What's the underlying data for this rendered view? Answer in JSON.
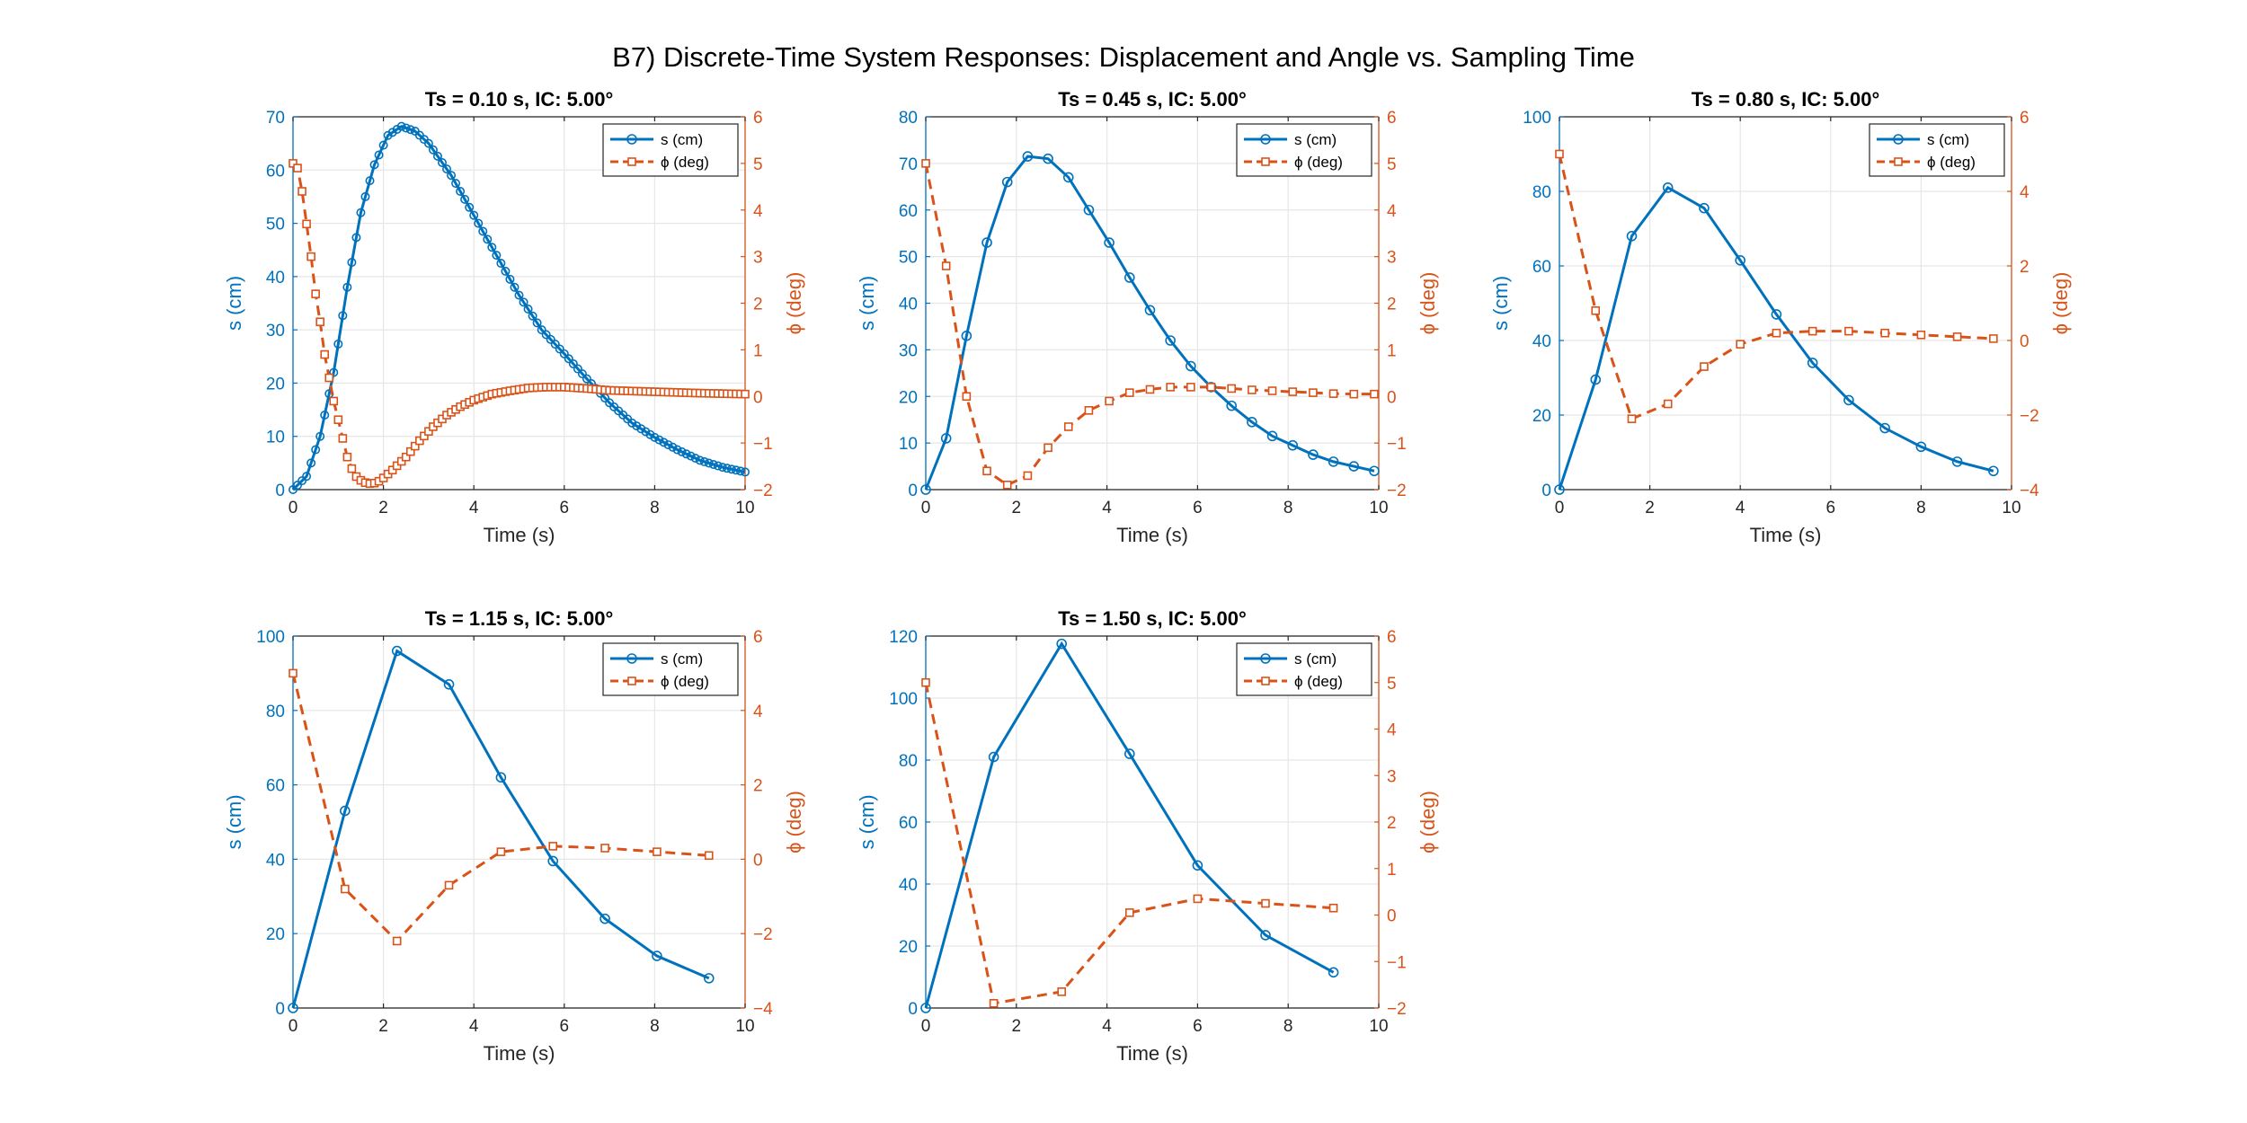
{
  "figure_title": "B7) Discrete-Time System Responses: Displacement and Angle vs. Sampling Time",
  "colors": {
    "s": "#0072BD",
    "phi": "#D95319",
    "grid": "#e6e6e6",
    "axis": "#262626"
  },
  "chart_data": [
    {
      "type": "line",
      "title": "Ts = 0.10 s, IC: 5.00°",
      "xlabel": "Time (s)",
      "ylabel_left": "s (cm)",
      "ylabel_right": "ϕ (deg)",
      "xlim": [
        0,
        10
      ],
      "ylim_left": [
        0,
        70
      ],
      "ylim_right": [
        -2,
        6
      ],
      "xticks": [
        0,
        2,
        4,
        6,
        8,
        10
      ],
      "yticks_left": [
        0,
        10,
        20,
        30,
        40,
        50,
        60,
        70
      ],
      "yticks_right": [
        -2,
        -1,
        0,
        1,
        2,
        3,
        4,
        5,
        6
      ],
      "legend": [
        "s (cm)",
        "ϕ (deg)"
      ],
      "legend_position": "top-right",
      "grid": true,
      "dense": true,
      "Ts": 0.1,
      "tmax": 10.0,
      "s_key": [
        [
          0,
          0
        ],
        [
          0.3,
          2.5
        ],
        [
          0.6,
          10
        ],
        [
          0.9,
          22
        ],
        [
          1.2,
          38
        ],
        [
          1.5,
          52
        ],
        [
          1.8,
          61
        ],
        [
          2.1,
          66.5
        ],
        [
          2.4,
          68.2
        ],
        [
          2.7,
          67.3
        ],
        [
          3.0,
          65
        ],
        [
          3.5,
          59
        ],
        [
          4.0,
          51.5
        ],
        [
          4.5,
          44
        ],
        [
          5.0,
          36.5
        ],
        [
          5.5,
          30
        ],
        [
          6.0,
          25.5
        ],
        [
          6.5,
          20.8
        ],
        [
          7.0,
          16.3
        ],
        [
          7.5,
          12.5
        ],
        [
          8.0,
          9.8
        ],
        [
          8.5,
          7.5
        ],
        [
          9.0,
          5.5
        ],
        [
          9.5,
          4.2
        ],
        [
          10.0,
          3.3
        ]
      ],
      "phi_key": [
        [
          0,
          5.0
        ],
        [
          0.1,
          4.9
        ],
        [
          0.2,
          4.4
        ],
        [
          0.3,
          3.7
        ],
        [
          0.4,
          3.0
        ],
        [
          0.5,
          2.2
        ],
        [
          0.6,
          1.6
        ],
        [
          0.7,
          0.9
        ],
        [
          0.8,
          0.4
        ],
        [
          0.9,
          -0.1
        ],
        [
          1.0,
          -0.5
        ],
        [
          1.1,
          -0.9
        ],
        [
          1.2,
          -1.3
        ],
        [
          1.3,
          -1.55
        ],
        [
          1.4,
          -1.72
        ],
        [
          1.5,
          -1.8
        ],
        [
          1.6,
          -1.85
        ],
        [
          1.7,
          -1.87
        ],
        [
          1.8,
          -1.86
        ],
        [
          1.9,
          -1.82
        ],
        [
          2.0,
          -1.75
        ],
        [
          2.2,
          -1.58
        ],
        [
          2.5,
          -1.3
        ],
        [
          2.8,
          -0.95
        ],
        [
          3.1,
          -0.65
        ],
        [
          3.4,
          -0.4
        ],
        [
          3.7,
          -0.22
        ],
        [
          4.0,
          -0.08
        ],
        [
          4.4,
          0.05
        ],
        [
          4.8,
          0.12
        ],
        [
          5.2,
          0.18
        ],
        [
          5.6,
          0.2
        ],
        [
          6.0,
          0.2
        ],
        [
          6.5,
          0.17
        ],
        [
          7.0,
          0.13
        ],
        [
          8.0,
          0.1
        ],
        [
          9.0,
          0.07
        ],
        [
          10.0,
          0.05
        ]
      ]
    },
    {
      "type": "line",
      "title": "Ts = 0.45 s, IC: 5.00°",
      "xlabel": "Time (s)",
      "ylabel_left": "s (cm)",
      "ylabel_right": "ϕ (deg)",
      "xlim": [
        0,
        10
      ],
      "ylim_left": [
        0,
        80
      ],
      "ylim_right": [
        -2,
        6
      ],
      "xticks": [
        0,
        2,
        4,
        6,
        8,
        10
      ],
      "yticks_left": [
        0,
        10,
        20,
        30,
        40,
        50,
        60,
        70,
        80
      ],
      "yticks_right": [
        -2,
        -1,
        0,
        1,
        2,
        3,
        4,
        5,
        6
      ],
      "legend": [
        "s (cm)",
        "ϕ (deg)"
      ],
      "legend_position": "top-right",
      "grid": true,
      "x": [
        0,
        0.45,
        0.9,
        1.35,
        1.8,
        2.25,
        2.7,
        3.15,
        3.6,
        4.05,
        4.5,
        4.95,
        5.4,
        5.85,
        6.3,
        6.75,
        7.2,
        7.65,
        8.1,
        8.55,
        9.0,
        9.45,
        9.9
      ],
      "s": [
        0,
        11,
        33,
        53,
        66,
        71.5,
        71,
        67,
        60,
        53,
        45.5,
        38.5,
        32,
        26.5,
        22,
        18,
        14.5,
        11.5,
        9.5,
        7.5,
        6.0,
        5.0,
        4.0
      ],
      "phi": [
        5.0,
        2.8,
        0.0,
        -1.6,
        -1.9,
        -1.7,
        -1.1,
        -0.65,
        -0.3,
        -0.1,
        0.08,
        0.15,
        0.2,
        0.2,
        0.2,
        0.17,
        0.14,
        0.12,
        0.1,
        0.08,
        0.06,
        0.05,
        0.05
      ]
    },
    {
      "type": "line",
      "title": "Ts = 0.80 s, IC: 5.00°",
      "xlabel": "Time (s)",
      "ylabel_left": "s (cm)",
      "ylabel_right": "ϕ (deg)",
      "xlim": [
        0,
        10
      ],
      "ylim_left": [
        0,
        100
      ],
      "ylim_right": [
        -4,
        6
      ],
      "xticks": [
        0,
        2,
        4,
        6,
        8,
        10
      ],
      "yticks_left": [
        0,
        20,
        40,
        60,
        80,
        100
      ],
      "yticks_right": [
        -4,
        -2,
        0,
        2,
        4,
        6
      ],
      "legend": [
        "s (cm)",
        "ϕ (deg)"
      ],
      "legend_position": "top-right",
      "grid": true,
      "x": [
        0,
        0.8,
        1.6,
        2.4,
        3.2,
        4.0,
        4.8,
        5.6,
        6.4,
        7.2,
        8.0,
        8.8,
        9.6
      ],
      "s": [
        0,
        29.5,
        68,
        81,
        75.5,
        61.5,
        47,
        34,
        24,
        16.5,
        11.5,
        7.5,
        5.0
      ],
      "phi": [
        5.0,
        0.8,
        -2.1,
        -1.7,
        -0.7,
        -0.1,
        0.2,
        0.25,
        0.25,
        0.2,
        0.15,
        0.1,
        0.05
      ]
    },
    {
      "type": "line",
      "title": "Ts = 1.15 s, IC: 5.00°",
      "xlabel": "Time (s)",
      "ylabel_left": "s (cm)",
      "ylabel_right": "ϕ (deg)",
      "xlim": [
        0,
        10
      ],
      "ylim_left": [
        0,
        100
      ],
      "ylim_right": [
        -4,
        6
      ],
      "xticks": [
        0,
        2,
        4,
        6,
        8,
        10
      ],
      "yticks_left": [
        0,
        20,
        40,
        60,
        80,
        100
      ],
      "yticks_right": [
        -4,
        -2,
        0,
        2,
        4,
        6
      ],
      "legend": [
        "s (cm)",
        "ϕ (deg)"
      ],
      "legend_position": "top-right",
      "grid": true,
      "x": [
        0,
        1.15,
        2.3,
        3.45,
        4.6,
        5.75,
        6.9,
        8.05,
        9.2
      ],
      "s": [
        0,
        53,
        96,
        87,
        62,
        39.5,
        24,
        14,
        8
      ],
      "phi": [
        5.0,
        -0.8,
        -2.2,
        -0.7,
        0.2,
        0.35,
        0.3,
        0.2,
        0.1
      ]
    },
    {
      "type": "line",
      "title": "Ts = 1.50 s, IC: 5.00°",
      "xlabel": "Time (s)",
      "ylabel_left": "s (cm)",
      "ylabel_right": "ϕ (deg)",
      "xlim": [
        0,
        10
      ],
      "ylim_left": [
        0,
        120
      ],
      "ylim_right": [
        -2,
        6
      ],
      "xticks": [
        0,
        2,
        4,
        6,
        8,
        10
      ],
      "yticks_left": [
        0,
        20,
        40,
        60,
        80,
        100,
        120
      ],
      "yticks_right": [
        -2,
        -1,
        0,
        1,
        2,
        3,
        4,
        5,
        6
      ],
      "legend": [
        "s (cm)",
        "ϕ (deg)"
      ],
      "legend_position": "top-right",
      "grid": true,
      "x": [
        0,
        1.5,
        3.0,
        4.5,
        6.0,
        7.5,
        9.0
      ],
      "s": [
        0,
        81,
        117.5,
        82,
        46,
        23.5,
        11.5
      ],
      "phi": [
        5.0,
        -1.9,
        -1.65,
        0.05,
        0.35,
        0.25,
        0.15
      ]
    }
  ]
}
